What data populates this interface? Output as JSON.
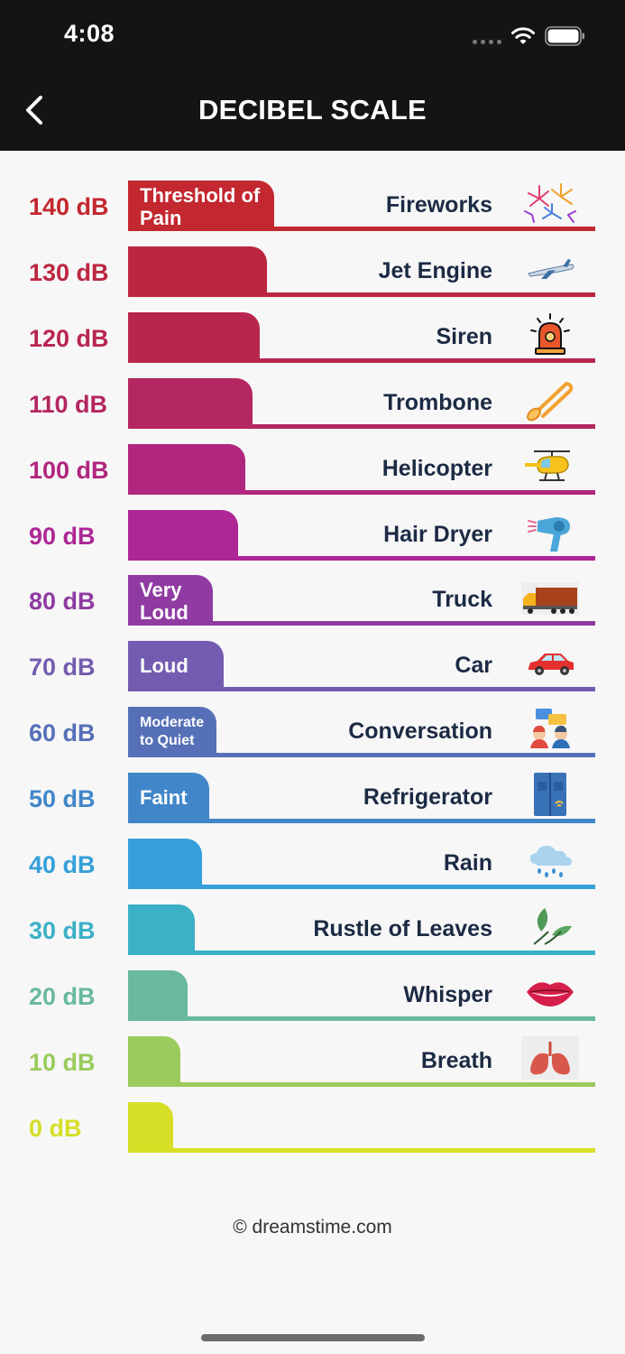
{
  "status": {
    "time": "4:08"
  },
  "nav": {
    "title": "DECIBEL SCALE",
    "back_icon": "chevron-left-icon"
  },
  "levels": [
    {
      "db": "140 dB",
      "tab_label": "Threshold of Pain",
      "source": "Fireworks",
      "icon": "fireworks-icon",
      "color": "#c3272f"
    },
    {
      "db": "130 dB",
      "tab_label": "",
      "source": "Jet Engine",
      "icon": "jet-engine-icon",
      "color": "#bc2640"
    },
    {
      "db": "120 dB",
      "tab_label": "",
      "source": "Siren",
      "icon": "siren-icon",
      "color": "#b82650"
    },
    {
      "db": "110 dB",
      "tab_label": "",
      "source": "Trombone",
      "icon": "trombone-icon",
      "color": "#b4265f"
    },
    {
      "db": "100 dB",
      "tab_label": "",
      "source": "Helicopter",
      "icon": "helicopter-icon",
      "color": "#b1267e"
    },
    {
      "db": "90 dB",
      "tab_label": "",
      "source": "Hair Dryer",
      "icon": "hair-dryer-icon",
      "color": "#ad2796"
    },
    {
      "db": "80 dB",
      "tab_label": "Very Loud",
      "source": "Truck",
      "icon": "truck-icon",
      "color": "#8f3ba1"
    },
    {
      "db": "70 dB",
      "tab_label": "Loud",
      "source": "Car",
      "icon": "car-icon",
      "color": "#735cb0"
    },
    {
      "db": "60 dB",
      "tab_label": "Moderate to Quiet",
      "source": "Conversation",
      "icon": "conversation-icon",
      "color": "#5670b8"
    },
    {
      "db": "50 dB",
      "tab_label": "Faint",
      "source": "Refrigerator",
      "icon": "refrigerator-icon",
      "color": "#4186c8"
    },
    {
      "db": "40 dB",
      "tab_label": "",
      "source": "Rain",
      "icon": "rain-cloud-icon",
      "color": "#35a0d9"
    },
    {
      "db": "30 dB",
      "tab_label": "",
      "source": "Rustle of Leaves",
      "icon": "leaves-icon",
      "color": "#3bb0c6"
    },
    {
      "db": "20 dB",
      "tab_label": "",
      "source": "Whisper",
      "icon": "lips-icon",
      "color": "#68b99d"
    },
    {
      "db": "10 dB",
      "tab_label": "",
      "source": "Breath",
      "icon": "lungs-icon",
      "color": "#9acb5c"
    },
    {
      "db": "0 dB",
      "tab_label": "",
      "source": "",
      "icon": "",
      "color": "#d6df26"
    }
  ],
  "credit": "© dreamstime.com"
}
